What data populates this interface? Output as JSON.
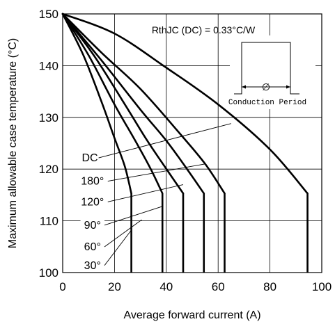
{
  "chart_data": {
    "type": "line",
    "title": "",
    "xlabel": "Average forward current (A)",
    "ylabel": "Maximum allowable case temperature (°C)",
    "xlim": [
      0,
      100
    ],
    "ylim": [
      100,
      150
    ],
    "xticks": [
      "0",
      "20",
      "40",
      "60",
      "80",
      "100"
    ],
    "yticks": [
      "100",
      "110",
      "120",
      "130",
      "140",
      "150"
    ],
    "grid": true,
    "annotation": "RthJC (DC) = 0.33°C/W",
    "inset_label": "Conduction Period",
    "inset_symbol": "∅",
    "series": [
      {
        "name": "DC",
        "x": [
          0,
          20,
          40,
          60,
          80,
          94.5
        ],
        "y": [
          150,
          146.2,
          139.6,
          132.5,
          123.8,
          115.3
        ]
      },
      {
        "name": "180°",
        "x": [
          0,
          15,
          30,
          45,
          55,
          62.5
        ],
        "y": [
          150,
          142.5,
          135.5,
          127.0,
          121.0,
          115.3
        ]
      },
      {
        "name": "120°",
        "x": [
          0,
          15,
          30,
          40,
          48,
          54.5
        ],
        "y": [
          150,
          141.0,
          131.5,
          125.5,
          120.0,
          115.3
        ]
      },
      {
        "name": "90°",
        "x": [
          0,
          12,
          24,
          32,
          38,
          46.5
        ],
        "y": [
          150,
          142.0,
          132.5,
          126.0,
          121.5,
          115.3
        ]
      },
      {
        "name": "60°",
        "x": [
          0,
          10,
          20,
          28,
          34,
          38.5
        ],
        "y": [
          150,
          142.0,
          132.5,
          125.5,
          120.0,
          115.3
        ]
      },
      {
        "name": "30°",
        "x": [
          0,
          8,
          15,
          20,
          24,
          26.5
        ],
        "y": [
          150,
          142.0,
          133.0,
          126.0,
          120.5,
          115.3
        ]
      }
    ],
    "vertical_drops": [
      {
        "name": "DC",
        "x": 94.5,
        "y_from": 115.3,
        "y_to": 100
      },
      {
        "name": "180°",
        "x": 62.5,
        "y_from": 115.3,
        "y_to": 100
      },
      {
        "name": "120°",
        "x": 54.5,
        "y_from": 115.3,
        "y_to": 100
      },
      {
        "name": "90°",
        "x": 46.5,
        "y_from": 115.3,
        "y_to": 100
      },
      {
        "name": "60°",
        "x": 38.5,
        "y_from": 115.3,
        "y_to": 100
      },
      {
        "name": "30°",
        "x": 26.5,
        "y_from": 115.3,
        "y_to": 100
      }
    ],
    "curve_labels": [
      {
        "text": "DC",
        "x": 10.5,
        "y": 121.5,
        "anchor_x": 65.0,
        "anchor_y": 128.8
      },
      {
        "text": "180°",
        "x": 11.5,
        "y": 117.0,
        "anchor_x": 55.0,
        "anchor_y": 121.0
      },
      {
        "text": "120°",
        "x": 11.5,
        "y": 113.0,
        "anchor_x": 46.5,
        "anchor_y": 117.0
      },
      {
        "text": "90°",
        "x": 11.5,
        "y": 108.5,
        "anchor_x": 38.5,
        "anchor_y": 112.8
      },
      {
        "text": "60°",
        "x": 11.5,
        "y": 104.3,
        "anchor_x": 30.5,
        "anchor_y": 110.2
      },
      {
        "text": "30°",
        "x": 11.5,
        "y": 100.7,
        "anchor_x": 26.5,
        "anchor_y": 108.2
      }
    ]
  }
}
